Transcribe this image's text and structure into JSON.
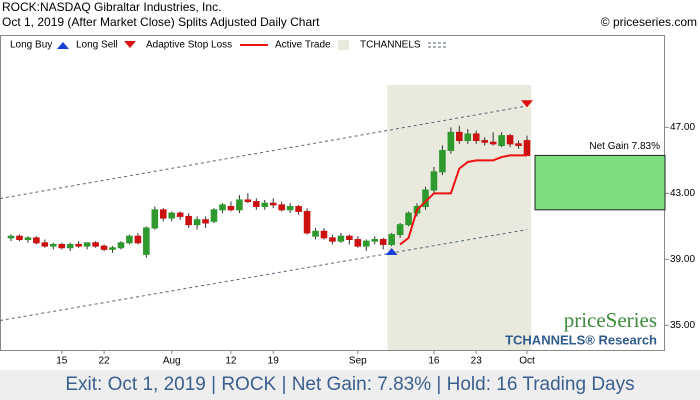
{
  "chart_data": {
    "type": "candlestick",
    "title": "ROCK:NASDAQ Gibraltar Industries, Inc.",
    "subtitle": "Oct 1, 2019 (After Market Close)  Splits Adjusted Daily Chart",
    "credit": "© priceseries.com",
    "footer": "Exit: Oct 1, 2019 | ROCK | Net Gain: 7.83% | Hold: 16 Trading Days",
    "watermark": "priceSeries",
    "watermark_sub": "TCHANNELS® Research",
    "categories": [
      null,
      null,
      null,
      null,
      null,
      null,
      "15",
      null,
      null,
      null,
      null,
      "22",
      null,
      null,
      null,
      null,
      null,
      null,
      null,
      "Aug",
      null,
      null,
      null,
      null,
      null,
      null,
      "12",
      null,
      null,
      null,
      null,
      "19",
      null,
      null,
      null,
      null,
      null,
      null,
      null,
      null,
      null,
      "Sep",
      null,
      null,
      null,
      null,
      null,
      null,
      null,
      null,
      "16",
      null,
      null,
      null,
      null,
      "23",
      null,
      null,
      null,
      null,
      null,
      "Oct"
    ],
    "ylim": [
      33.5,
      52.6
    ],
    "yticks": [
      {
        "value": 35,
        "label": "35.00"
      },
      {
        "value": 39,
        "label": "39.00"
      },
      {
        "value": 43,
        "label": "43.00"
      },
      {
        "value": 47,
        "label": "47.00"
      }
    ],
    "up_color": "#2e9a2e",
    "down_color": "#cc1111",
    "open": [
      40.3,
      40.4,
      40.2,
      40.3,
      40.0,
      39.8,
      39.9,
      39.7,
      39.9,
      39.8,
      40.0,
      39.8,
      39.6,
      39.7,
      40.0,
      40.4,
      39.3,
      40.9,
      42.0,
      41.5,
      41.8,
      41.6,
      41.1,
      41.4,
      41.3,
      42.0,
      42.2,
      42.0,
      42.6,
      42.5,
      42.2,
      42.4,
      42.3,
      42.0,
      42.2,
      41.9,
      40.4,
      40.7,
      40.3,
      40.1,
      40.4,
      40.2,
      39.8,
      40.1,
      40.2,
      39.9,
      40.5,
      41.1,
      41.8,
      42.2,
      43.2,
      44.3,
      45.6,
      46.7,
      46.2,
      46.6,
      46.2,
      46.1,
      45.9,
      46.5,
      46.0,
      46.2
    ],
    "high": [
      40.5,
      40.5,
      40.4,
      40.4,
      40.2,
      40.0,
      40.0,
      40.0,
      40.1,
      40.0,
      40.1,
      39.9,
      39.8,
      40.1,
      40.5,
      40.6,
      41.0,
      42.2,
      42.1,
      41.9,
      41.9,
      41.8,
      41.6,
      41.6,
      42.1,
      42.4,
      42.5,
      42.9,
      43.0,
      42.7,
      42.6,
      42.7,
      42.5,
      42.4,
      42.3,
      42.1,
      40.9,
      40.9,
      40.5,
      40.6,
      40.5,
      40.4,
      40.2,
      40.4,
      40.3,
      40.6,
      41.2,
      41.9,
      42.4,
      43.4,
      44.6,
      45.9,
      47.0,
      47.1,
      46.9,
      46.8,
      46.4,
      46.7,
      46.7,
      46.6,
      46.2,
      46.5
    ],
    "low": [
      40.1,
      40.1,
      40.0,
      39.9,
      39.7,
      39.6,
      39.6,
      39.5,
      39.7,
      39.6,
      39.7,
      39.5,
      39.4,
      39.6,
      39.9,
      39.9,
      39.1,
      40.8,
      41.3,
      41.3,
      41.4,
      40.9,
      40.8,
      40.9,
      41.2,
      41.8,
      41.9,
      41.8,
      42.4,
      42.0,
      42.0,
      42.1,
      41.9,
      41.8,
      41.7,
      40.5,
      40.2,
      40.2,
      39.9,
      40.0,
      39.9,
      39.7,
      39.5,
      39.9,
      39.6,
      39.8,
      40.3,
      41.0,
      41.6,
      42.0,
      43.0,
      44.1,
      45.4,
      46.0,
      46.0,
      46.0,
      45.9,
      45.9,
      45.8,
      45.8,
      45.7,
      45.3
    ],
    "close": [
      40.4,
      40.2,
      40.3,
      40.0,
      39.8,
      39.9,
      39.7,
      39.9,
      39.8,
      40.0,
      39.8,
      39.6,
      39.7,
      40.0,
      40.4,
      40.0,
      40.9,
      42.0,
      41.5,
      41.8,
      41.6,
      41.1,
      41.4,
      41.2,
      42.0,
      42.3,
      42.0,
      42.6,
      42.5,
      42.2,
      42.4,
      42.3,
      42.0,
      42.2,
      41.9,
      40.6,
      40.7,
      40.3,
      40.1,
      40.4,
      40.2,
      39.8,
      40.1,
      40.2,
      39.9,
      40.5,
      41.1,
      41.8,
      42.2,
      43.2,
      44.3,
      45.6,
      46.7,
      46.2,
      46.6,
      46.2,
      46.1,
      46.0,
      46.5,
      46.0,
      45.9,
      45.3
    ],
    "series": [
      {
        "name": "Long Buy",
        "color": "#1a3fd8",
        "values": [
          null,
          null,
          null,
          null,
          null,
          null,
          null,
          null,
          null,
          null,
          null,
          null,
          null,
          null,
          null,
          null,
          null,
          null,
          null,
          null,
          null,
          null,
          null,
          null,
          null,
          null,
          null,
          null,
          null,
          null,
          null,
          null,
          null,
          null,
          null,
          null,
          null,
          null,
          null,
          null,
          null,
          null,
          null,
          null,
          null,
          39.5,
          null,
          null,
          null,
          null,
          null,
          null,
          null,
          null,
          null,
          null,
          null,
          null,
          null,
          null,
          null,
          null
        ]
      },
      {
        "name": "Long Sell",
        "color": "#dd1111",
        "values": [
          null,
          null,
          null,
          null,
          null,
          null,
          null,
          null,
          null,
          null,
          null,
          null,
          null,
          null,
          null,
          null,
          null,
          null,
          null,
          null,
          null,
          null,
          null,
          null,
          null,
          null,
          null,
          null,
          null,
          null,
          null,
          null,
          null,
          null,
          null,
          null,
          null,
          null,
          null,
          null,
          null,
          null,
          null,
          null,
          null,
          null,
          null,
          null,
          null,
          null,
          null,
          null,
          null,
          null,
          null,
          null,
          null,
          null,
          null,
          null,
          null,
          48.4
        ]
      },
      {
        "name": "Adaptive Stop Loss",
        "color": "#ee1111",
        "values": [
          null,
          null,
          null,
          null,
          null,
          null,
          null,
          null,
          null,
          null,
          null,
          null,
          null,
          null,
          null,
          null,
          null,
          null,
          null,
          null,
          null,
          null,
          null,
          null,
          null,
          null,
          null,
          null,
          null,
          null,
          null,
          null,
          null,
          null,
          null,
          null,
          null,
          null,
          null,
          null,
          null,
          null,
          null,
          null,
          null,
          null,
          39.9,
          40.3,
          42.0,
          42.5,
          43.0,
          43.0,
          43.0,
          44.5,
          44.9,
          45.0,
          45.0,
          45.0,
          45.2,
          45.3,
          45.3,
          45.3
        ]
      },
      {
        "name": "Active Trade",
        "color": "#e9eadd"
      },
      {
        "name": "TCHANNELS",
        "color": "#556677",
        "upper": [
          42.8,
          48.3
        ],
        "lower": [
          35.4,
          40.8
        ]
      }
    ],
    "net_gain": {
      "label": "Net Gain 7.83%",
      "values": [
        42.0,
        45.3
      ],
      "color": "#7ddc7d"
    }
  }
}
